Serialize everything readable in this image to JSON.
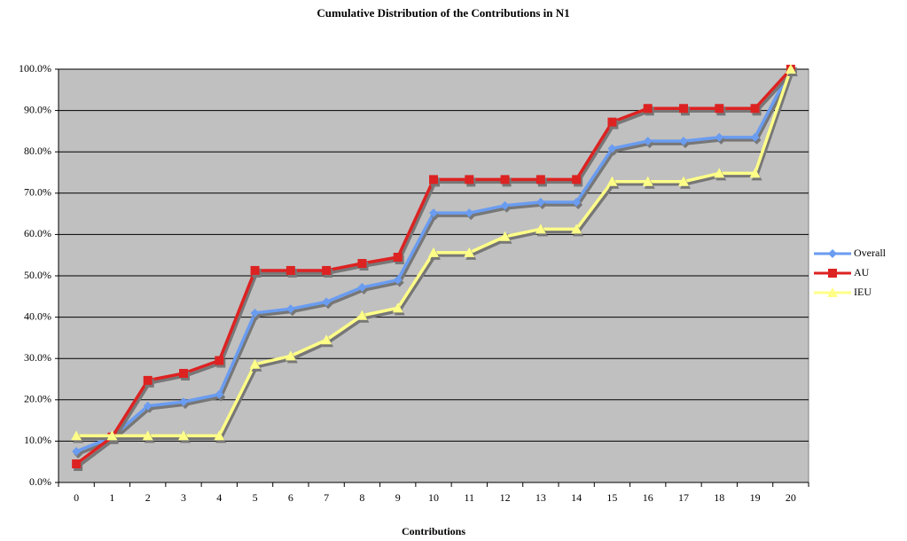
{
  "chart_data": {
    "type": "line",
    "title": "Cumulative Distribution of the Contributions in N1",
    "x_label": "Contributions",
    "categories": [
      "0",
      "1",
      "2",
      "3",
      "4",
      "5",
      "6",
      "7",
      "8",
      "9",
      "10",
      "11",
      "12",
      "13",
      "14",
      "15",
      "16",
      "17",
      "18",
      "19",
      "20"
    ],
    "series": [
      {
        "name": "Overall",
        "color": "#6a9cf0",
        "marker": "diamond",
        "values": [
          7.5,
          11,
          18.5,
          19.5,
          21.3,
          41,
          42,
          43.7,
          47.2,
          49,
          65.2,
          65.2,
          67,
          67.8,
          67.8,
          80.8,
          82.6,
          82.6,
          83.5,
          83.5,
          100
        ]
      },
      {
        "name": "AU",
        "color": "#dd2222",
        "marker": "square",
        "values": [
          4.5,
          11,
          24.7,
          26.4,
          29.5,
          51.3,
          51.3,
          51.3,
          53,
          54.5,
          73.3,
          73.3,
          73.3,
          73.3,
          73.3,
          87.2,
          90.5,
          90.5,
          90.5,
          90.5,
          100
        ]
      },
      {
        "name": "IEU",
        "color": "#ffff88",
        "marker": "triangle",
        "values": [
          11.3,
          11.3,
          11.3,
          11.3,
          11.3,
          28.6,
          30.6,
          34.5,
          40.4,
          42.2,
          55.6,
          55.6,
          59.5,
          61.3,
          61.3,
          72.8,
          72.8,
          72.8,
          74.8,
          74.8,
          100
        ]
      }
    ],
    "ylim": [
      0,
      100
    ],
    "yticks": [
      {
        "value": 0,
        "label": "0.0%"
      },
      {
        "value": 10,
        "label": "10.0%"
      },
      {
        "value": 20,
        "label": "20.0%"
      },
      {
        "value": 30,
        "label": "30.0%"
      },
      {
        "value": 40,
        "label": "40.0%"
      },
      {
        "value": 50,
        "label": "50.0%"
      },
      {
        "value": 60,
        "label": "60.0%"
      },
      {
        "value": 70,
        "label": "70.0%"
      },
      {
        "value": 80,
        "label": "80.0%"
      },
      {
        "value": 90,
        "label": "90.0%"
      },
      {
        "value": 100,
        "label": "100.0%"
      }
    ],
    "grid": true,
    "legend": "right",
    "plot_background": "#c0c0c0"
  }
}
